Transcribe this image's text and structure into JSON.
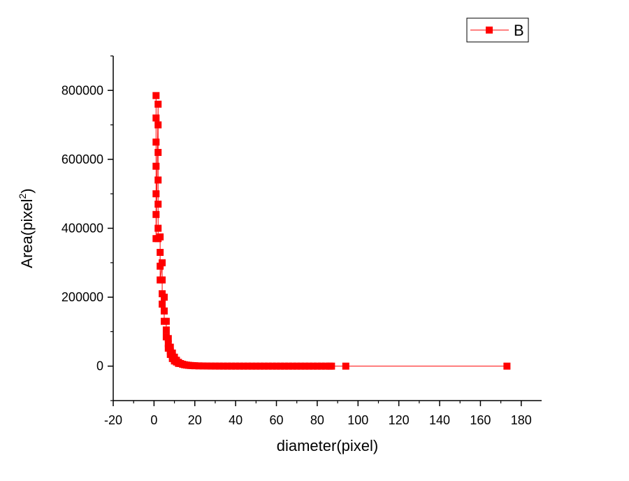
{
  "chart_data": {
    "type": "scatter",
    "title": "",
    "xlabel": "diameter(pixel)",
    "ylabel": "Area(pixel",
    "ylabel_superscript": "2",
    "ylabel_suffix": ")",
    "xlim": [
      -20,
      190
    ],
    "ylim": [
      -100000,
      900000
    ],
    "x_ticks": [
      -20,
      0,
      20,
      40,
      60,
      80,
      100,
      120,
      140,
      160,
      180
    ],
    "y_ticks": [
      0,
      200000,
      400000,
      600000,
      800000
    ],
    "grid": false,
    "legend_position": "top-right",
    "series": [
      {
        "name": "B",
        "color": "#ff0000",
        "marker": "square",
        "points": [
          [
            1,
            785000
          ],
          [
            1,
            720000
          ],
          [
            1,
            650000
          ],
          [
            1,
            580000
          ],
          [
            1,
            500000
          ],
          [
            1,
            440000
          ],
          [
            1,
            370000
          ],
          [
            2,
            760000
          ],
          [
            2,
            700000
          ],
          [
            2,
            620000
          ],
          [
            2,
            540000
          ],
          [
            2,
            470000
          ],
          [
            2,
            400000
          ],
          [
            2,
            370000
          ],
          [
            3,
            375000
          ],
          [
            3,
            330000
          ],
          [
            3,
            290000
          ],
          [
            3,
            250000
          ],
          [
            4,
            300000
          ],
          [
            4,
            250000
          ],
          [
            4,
            210000
          ],
          [
            4,
            180000
          ],
          [
            5,
            200000
          ],
          [
            5,
            160000
          ],
          [
            5,
            130000
          ],
          [
            6,
            130000
          ],
          [
            6,
            105000
          ],
          [
            6,
            85000
          ],
          [
            7,
            80000
          ],
          [
            7,
            65000
          ],
          [
            7,
            52000
          ],
          [
            8,
            55000
          ],
          [
            8,
            43000
          ],
          [
            8,
            34000
          ],
          [
            9,
            38000
          ],
          [
            9,
            29000
          ],
          [
            9,
            22000
          ],
          [
            10,
            26000
          ],
          [
            10,
            20000
          ],
          [
            10,
            15000
          ],
          [
            11,
            17000
          ],
          [
            11,
            12000
          ],
          [
            12,
            11000
          ],
          [
            12,
            8000
          ],
          [
            13,
            7500
          ],
          [
            14,
            5500
          ],
          [
            15,
            4000
          ],
          [
            16,
            3000
          ],
          [
            17,
            2300
          ],
          [
            18,
            1800
          ],
          [
            19,
            1400
          ],
          [
            20,
            1100
          ],
          [
            22,
            700
          ],
          [
            24,
            500
          ],
          [
            26,
            350
          ],
          [
            28,
            250
          ],
          [
            30,
            200
          ],
          [
            32,
            150
          ],
          [
            34,
            110
          ],
          [
            36,
            90
          ],
          [
            38,
            70
          ],
          [
            40,
            55
          ],
          [
            42,
            45
          ],
          [
            44,
            38
          ],
          [
            46,
            32
          ],
          [
            48,
            27
          ],
          [
            50,
            22
          ],
          [
            52,
            18
          ],
          [
            54,
            15
          ],
          [
            56,
            13
          ],
          [
            58,
            11
          ],
          [
            60,
            10
          ],
          [
            62,
            9
          ],
          [
            64,
            8
          ],
          [
            66,
            7
          ],
          [
            68,
            6
          ],
          [
            70,
            5
          ],
          [
            72,
            4
          ],
          [
            74,
            4
          ],
          [
            76,
            3
          ],
          [
            78,
            3
          ],
          [
            80,
            2
          ],
          [
            82,
            2
          ],
          [
            84,
            2
          ],
          [
            86,
            1
          ],
          [
            87,
            1
          ],
          [
            94,
            1
          ],
          [
            173,
            1
          ]
        ]
      }
    ]
  }
}
